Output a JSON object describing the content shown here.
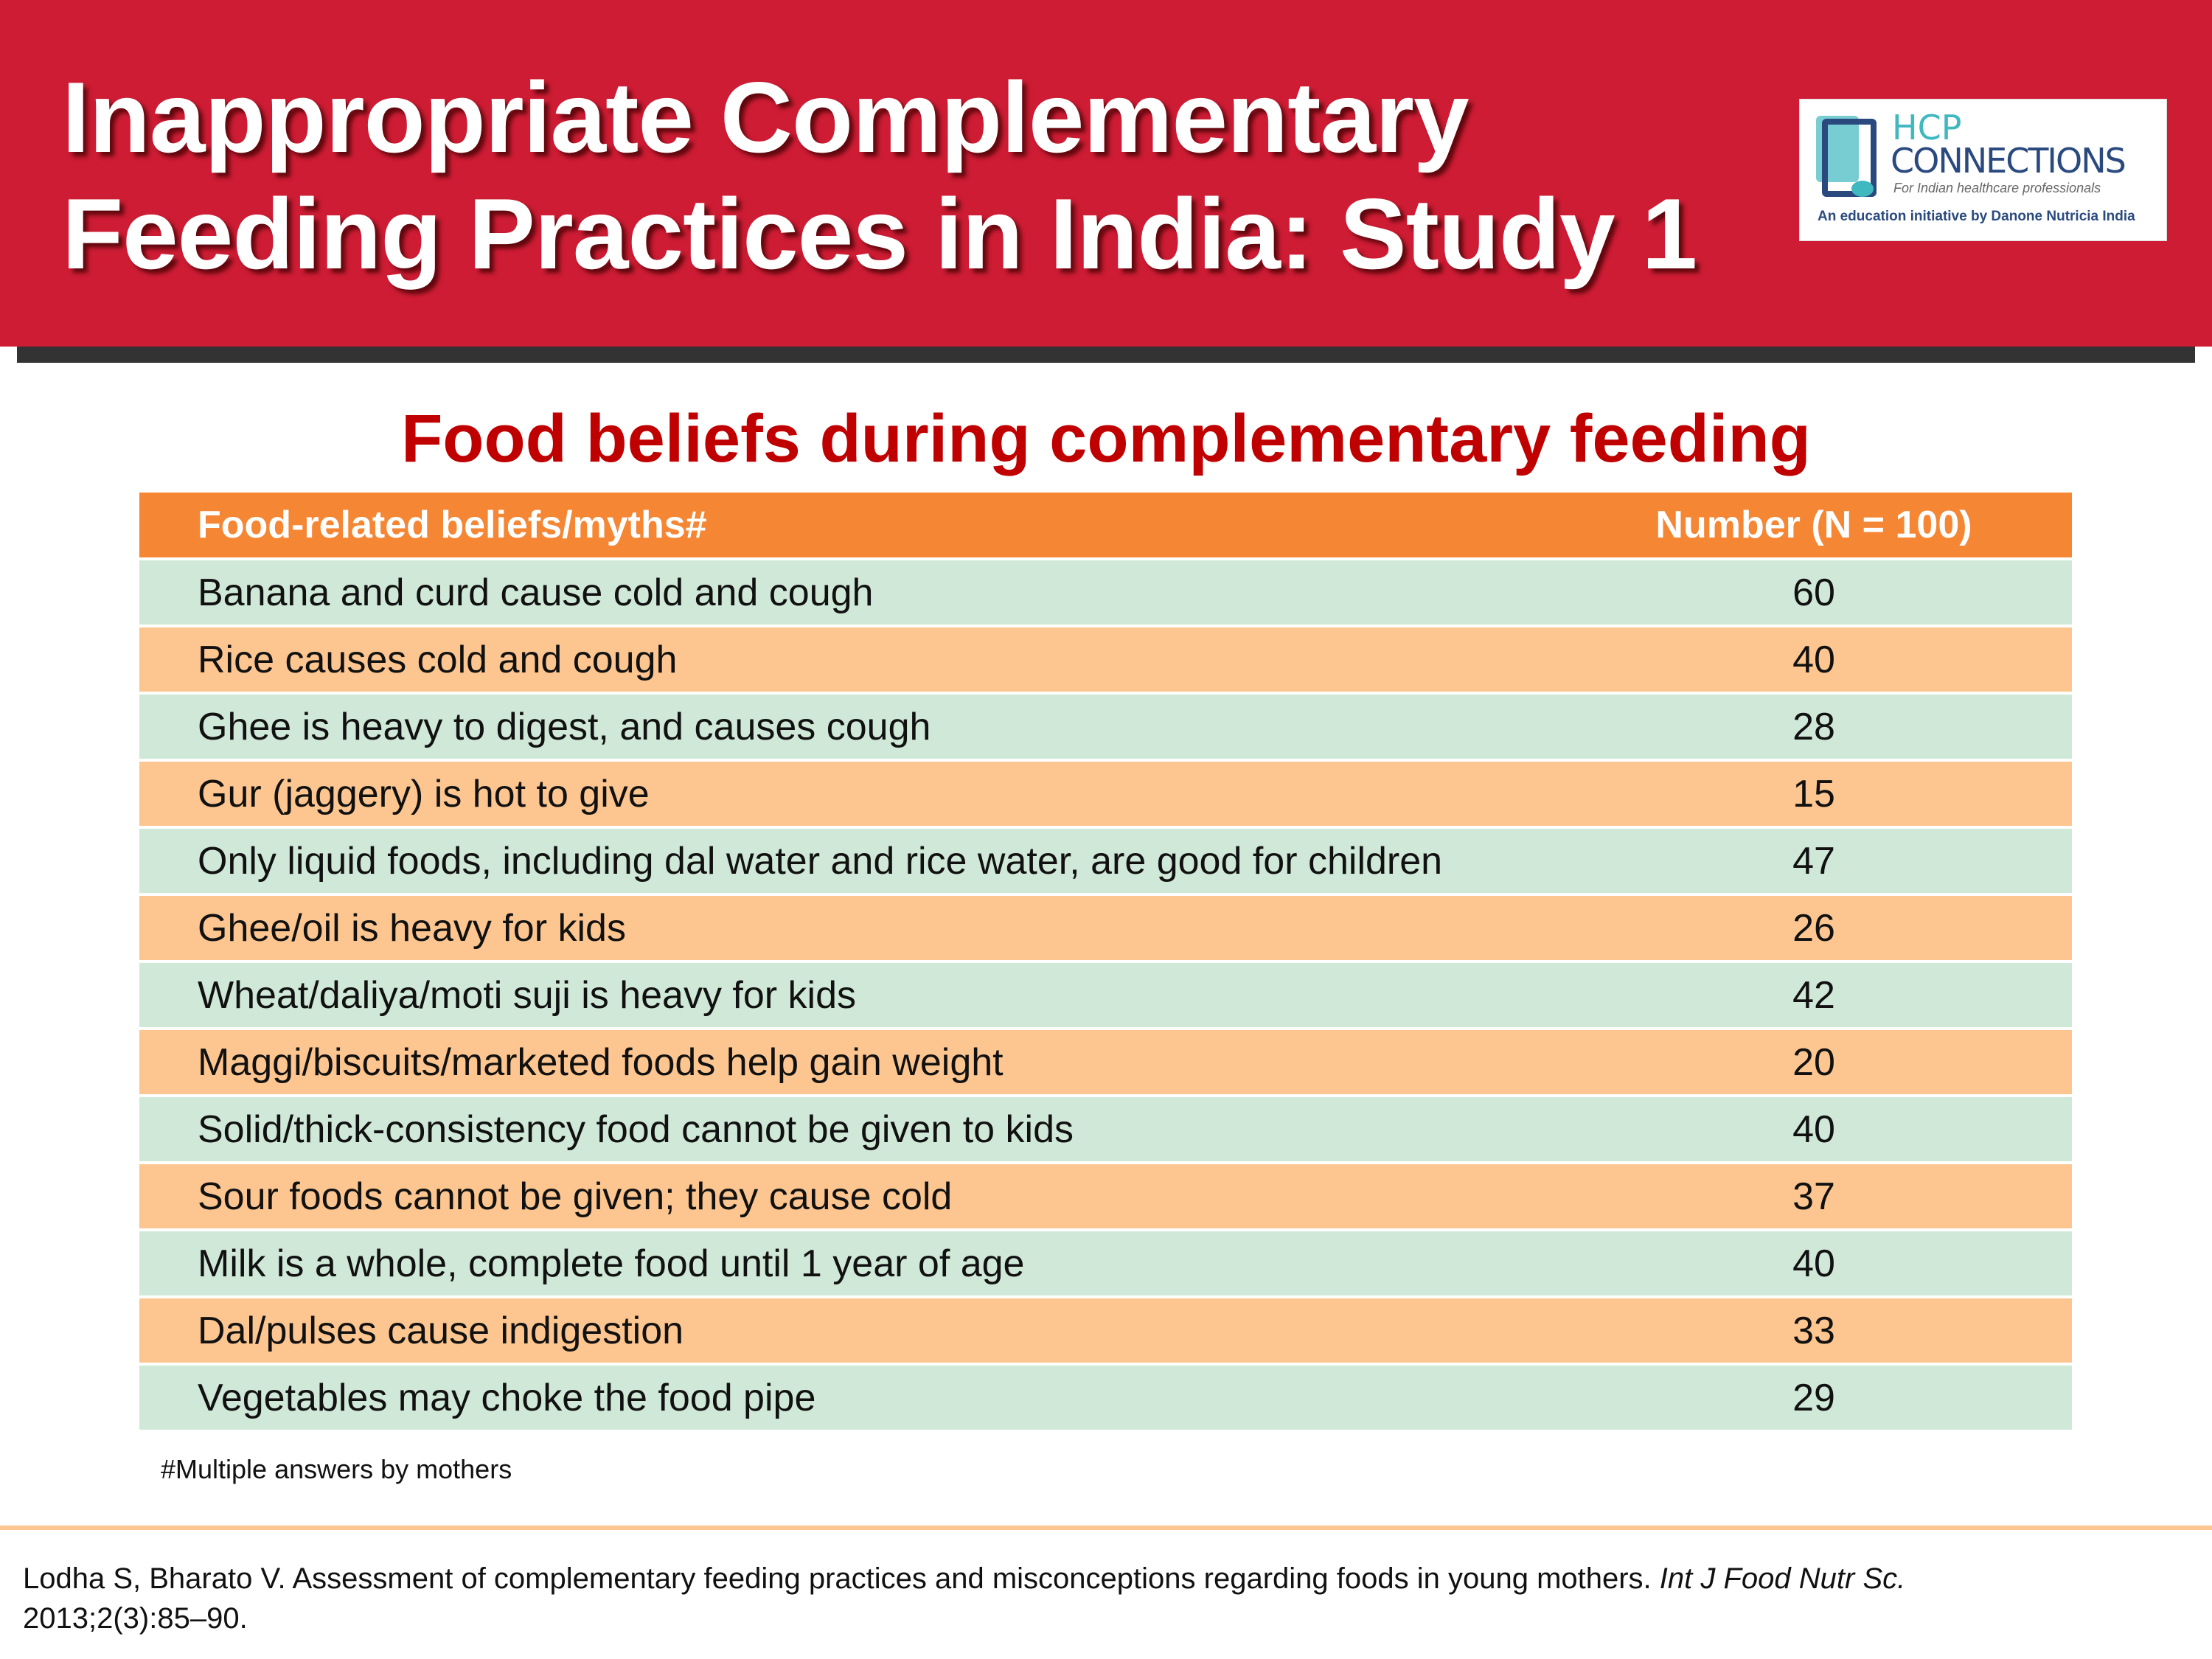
{
  "header": {
    "title_line1": "Inappropriate Complementary",
    "title_line2": "Feeding Practices in India: Study 1"
  },
  "logo": {
    "hcp": "HCP",
    "connections": "CONNECTIONS",
    "tagline": "For Indian healthcare professionals",
    "initiative": "An education initiative by Danone Nutricia India"
  },
  "subtitle": "Food beliefs during complementary feeding",
  "table": {
    "columns": [
      "Food-related beliefs/myths#",
      "Number (N = 100)"
    ],
    "rows": [
      {
        "belief": "Banana and curd cause cold and cough",
        "number": "60"
      },
      {
        "belief": "Rice causes cold and cough",
        "number": "40"
      },
      {
        "belief": "Ghee is heavy to digest, and causes cough",
        "number": "28"
      },
      {
        "belief": "Gur (jaggery) is hot to give",
        "number": "15"
      },
      {
        "belief": "Only liquid foods, including dal water and rice water, are good for children",
        "number": "47"
      },
      {
        "belief": "Ghee/oil is heavy for kids",
        "number": "26"
      },
      {
        "belief": "Wheat/daliya/moti suji is heavy for kids",
        "number": "42"
      },
      {
        "belief": "Maggi/biscuits/marketed foods help gain weight",
        "number": "20"
      },
      {
        "belief": "Solid/thick-consistency food cannot be given to kids",
        "number": "40"
      },
      {
        "belief": "Sour foods cannot be given; they cause cold",
        "number": "37"
      },
      {
        "belief": "Milk is a whole, complete food until 1 year of age",
        "number": "40"
      },
      {
        "belief": "Dal/pulses cause indigestion",
        "number": "33"
      },
      {
        "belief": "Vegetables may choke the food pipe",
        "number": "29"
      }
    ]
  },
  "footnote": "#Multiple answers by mothers",
  "citation": {
    "text": "Lodha S, Bharato V. Assessment of complementary feeding practices and misconceptions regarding foods in young mothers. ",
    "journal": "Int J Food Nutr Sc.",
    "details": "2013;2(3):85–90."
  },
  "colors": {
    "banner": "#cd1c34",
    "table_header": "#f58634",
    "row_green": "#d0e8d8",
    "row_orange": "#fdc690",
    "subtitle": "#c00000"
  }
}
